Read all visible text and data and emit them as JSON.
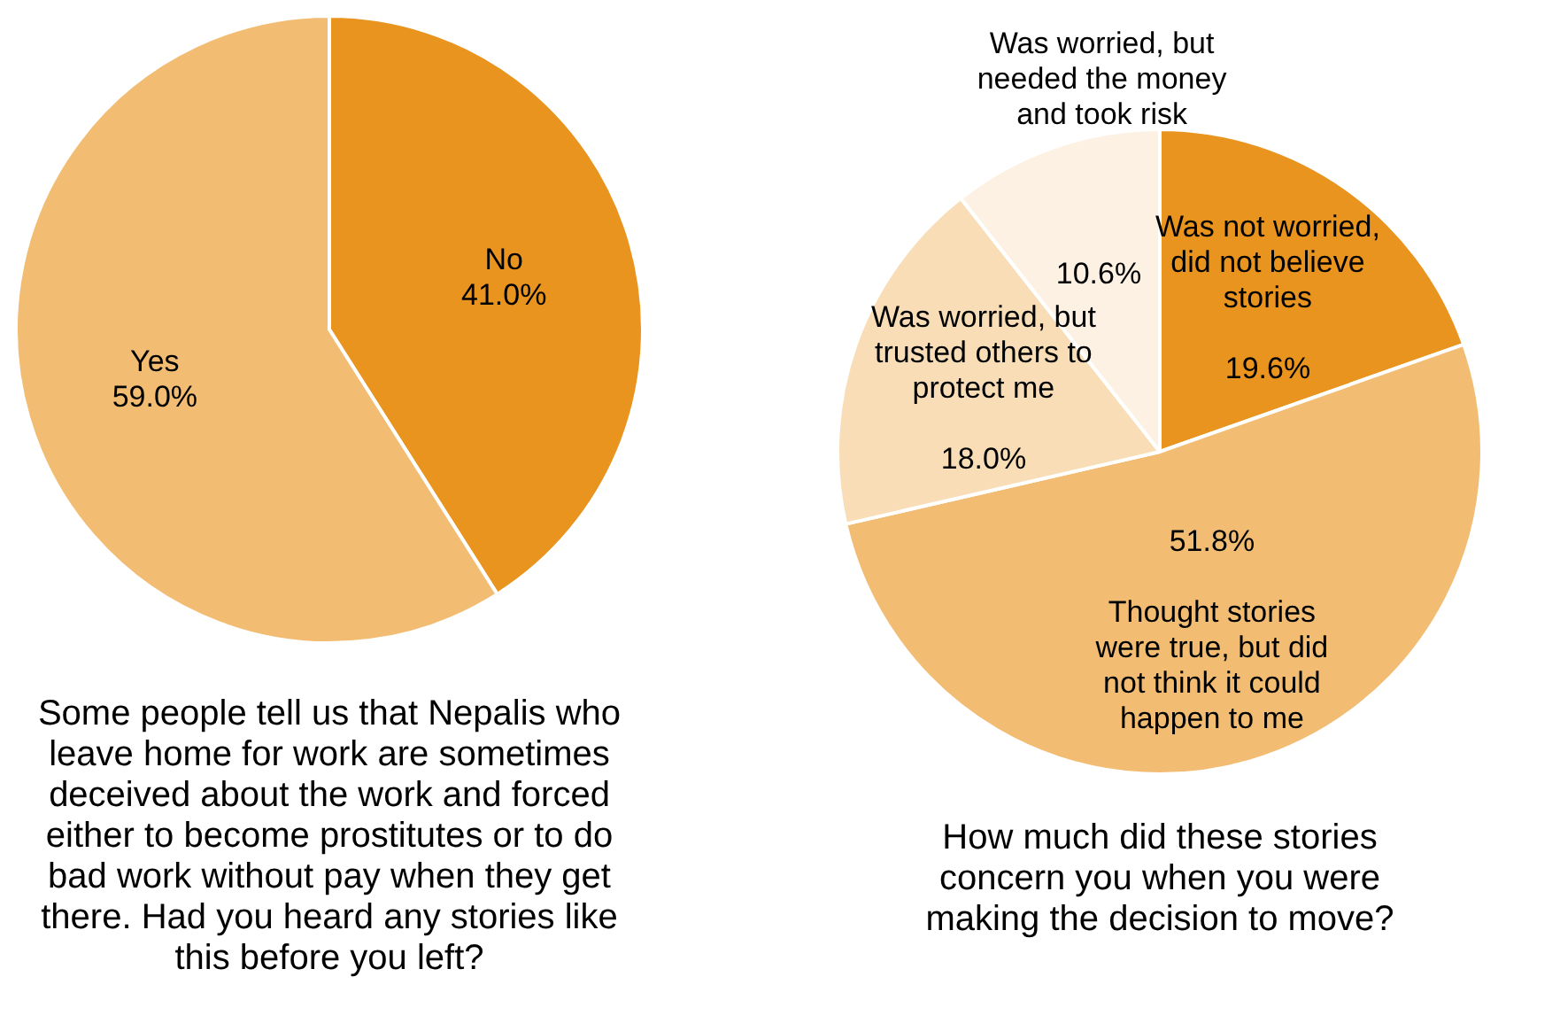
{
  "chart_data": [
    {
      "type": "pie",
      "title": "Some people tell us that Nepalis who leave home for work are sometimes deceived about the work and forced either to become prostitutes or to do bad work without pay when they get there.  Had you heard any stories like this before you left?",
      "categories": [
        "No",
        "Yes"
      ],
      "values": [
        41.0,
        59.0
      ],
      "colors": [
        "#e9941f",
        "#f2bc73"
      ],
      "value_labels": [
        "41.0%",
        "59.0%"
      ]
    },
    {
      "type": "pie",
      "title": "How much did these stories concern you when you were making the decision to move?",
      "categories": [
        "Was not worried, did not believe stories",
        "Thought stories were true, but did not think it could happen to me",
        "Was worried, but trusted others to protect me",
        "Was worried, but needed the money and took risk"
      ],
      "values": [
        19.6,
        51.8,
        18.0,
        10.6
      ],
      "colors": [
        "#e9941f",
        "#f2bc73",
        "#f8ddb6",
        "#fdf1e3"
      ],
      "value_labels": [
        "19.6%",
        "51.8%",
        "18.0%",
        "10.6%"
      ]
    }
  ]
}
